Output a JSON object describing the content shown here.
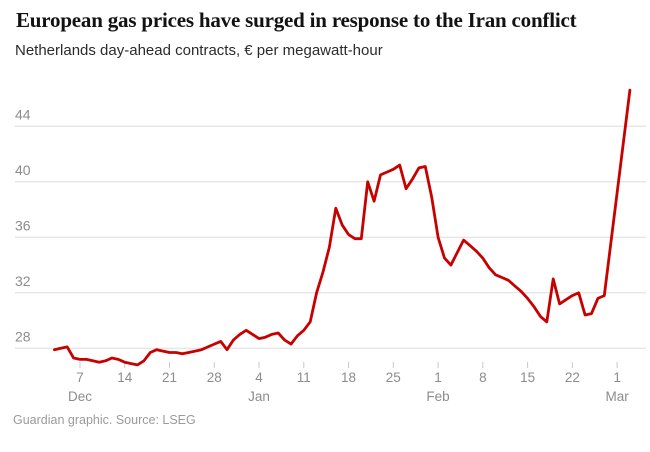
{
  "header": {
    "title": "European gas prices have surged in response to the Iran conflict",
    "subtitle": "Netherlands day-ahead contracts, € per megawatt-hour"
  },
  "footer": {
    "credit": "Guardian graphic. Source: LSEG"
  },
  "colors": {
    "line": "#c70000",
    "gridline": "#dedede",
    "tick_mark": "#c9c9c9",
    "axis_text": "#8c8c8c",
    "title_text": "#121212"
  },
  "chart_data": {
    "type": "line",
    "title": "European gas prices have surged in response to the Iran conflict",
    "subtitle": "Netherlands day-ahead contracts, € per megawatt-hour",
    "ylabel": "€ per megawatt-hour",
    "xlabel": "",
    "legend": "none",
    "grid": "horizontal",
    "y_axis": {
      "ticks": [
        28,
        32,
        36,
        40,
        44
      ],
      "range": [
        26.5,
        47.2
      ]
    },
    "x_axis": {
      "ticks": [
        {
          "label": "7",
          "day": 7
        },
        {
          "label": "14",
          "day": 14
        },
        {
          "label": "21",
          "day": 21
        },
        {
          "label": "28",
          "day": 28
        },
        {
          "label": "4",
          "day": 35
        },
        {
          "label": "11",
          "day": 42
        },
        {
          "label": "18",
          "day": 49
        },
        {
          "label": "25",
          "day": 56
        },
        {
          "label": "1",
          "day": 63
        },
        {
          "label": "8",
          "day": 70
        },
        {
          "label": "15",
          "day": 77
        },
        {
          "label": "22",
          "day": 84
        },
        {
          "label": "1",
          "day": 91
        }
      ],
      "months": [
        {
          "label": "Dec",
          "day": 7
        },
        {
          "label": "Jan",
          "day": 35
        },
        {
          "label": "Feb",
          "day": 63
        },
        {
          "label": "Mar",
          "day": 91
        }
      ]
    },
    "series": [
      {
        "name": "Netherlands day-ahead gas price",
        "color": "#c70000",
        "start_day": 3,
        "points": [
          {
            "date": "3 Dec",
            "value": 27.9
          },
          {
            "date": "4 Dec",
            "value": 28.0
          },
          {
            "date": "5 Dec",
            "value": 28.1
          },
          {
            "date": "6 Dec",
            "value": 27.3
          },
          {
            "date": "7 Dec",
            "value": 27.2
          },
          {
            "date": "8 Dec",
            "value": 27.2
          },
          {
            "date": "9 Dec",
            "value": 27.1
          },
          {
            "date": "10 Dec",
            "value": 27.0
          },
          {
            "date": "11 Dec",
            "value": 27.1
          },
          {
            "date": "12 Dec",
            "value": 27.3
          },
          {
            "date": "13 Dec",
            "value": 27.2
          },
          {
            "date": "14 Dec",
            "value": 27.0
          },
          {
            "date": "15 Dec",
            "value": 26.9
          },
          {
            "date": "16 Dec",
            "value": 26.8
          },
          {
            "date": "17 Dec",
            "value": 27.1
          },
          {
            "date": "18 Dec",
            "value": 27.7
          },
          {
            "date": "19 Dec",
            "value": 27.9
          },
          {
            "date": "20 Dec",
            "value": 27.8
          },
          {
            "date": "21 Dec",
            "value": 27.7
          },
          {
            "date": "22 Dec",
            "value": 27.7
          },
          {
            "date": "23 Dec",
            "value": 27.6
          },
          {
            "date": "24 Dec",
            "value": 27.7
          },
          {
            "date": "25 Dec",
            "value": 27.8
          },
          {
            "date": "26 Dec",
            "value": 27.9
          },
          {
            "date": "27 Dec",
            "value": 28.1
          },
          {
            "date": "28 Dec",
            "value": 28.3
          },
          {
            "date": "29 Dec",
            "value": 28.5
          },
          {
            "date": "30 Dec",
            "value": 27.9
          },
          {
            "date": "31 Dec",
            "value": 28.6
          },
          {
            "date": "1 Jan",
            "value": 29.0
          },
          {
            "date": "2 Jan",
            "value": 29.3
          },
          {
            "date": "3 Jan",
            "value": 29.0
          },
          {
            "date": "4 Jan",
            "value": 28.7
          },
          {
            "date": "5 Jan",
            "value": 28.8
          },
          {
            "date": "6 Jan",
            "value": 29.0
          },
          {
            "date": "7 Jan",
            "value": 29.1
          },
          {
            "date": "8 Jan",
            "value": 28.6
          },
          {
            "date": "9 Jan",
            "value": 28.3
          },
          {
            "date": "10 Jan",
            "value": 28.9
          },
          {
            "date": "11 Jan",
            "value": 29.3
          },
          {
            "date": "12 Jan",
            "value": 29.9
          },
          {
            "date": "13 Jan",
            "value": 32.0
          },
          {
            "date": "14 Jan",
            "value": 33.5
          },
          {
            "date": "15 Jan",
            "value": 35.3
          },
          {
            "date": "16 Jan",
            "value": 38.1
          },
          {
            "date": "17 Jan",
            "value": 36.9
          },
          {
            "date": "18 Jan",
            "value": 36.2
          },
          {
            "date": "19 Jan",
            "value": 35.9
          },
          {
            "date": "20 Jan",
            "value": 35.9
          },
          {
            "date": "21 Jan",
            "value": 40.0
          },
          {
            "date": "22 Jan",
            "value": 38.6
          },
          {
            "date": "23 Jan",
            "value": 40.5
          },
          {
            "date": "24 Jan",
            "value": 40.7
          },
          {
            "date": "25 Jan",
            "value": 40.9
          },
          {
            "date": "26 Jan",
            "value": 41.2
          },
          {
            "date": "27 Jan",
            "value": 39.5
          },
          {
            "date": "28 Jan",
            "value": 40.2
          },
          {
            "date": "29 Jan",
            "value": 41.0
          },
          {
            "date": "30 Jan",
            "value": 41.1
          },
          {
            "date": "31 Jan",
            "value": 38.9
          },
          {
            "date": "1 Feb",
            "value": 36.0
          },
          {
            "date": "2 Feb",
            "value": 34.5
          },
          {
            "date": "3 Feb",
            "value": 34.0
          },
          {
            "date": "4 Feb",
            "value": 34.9
          },
          {
            "date": "5 Feb",
            "value": 35.8
          },
          {
            "date": "6 Feb",
            "value": 35.4
          },
          {
            "date": "7 Feb",
            "value": 35.0
          },
          {
            "date": "8 Feb",
            "value": 34.5
          },
          {
            "date": "9 Feb",
            "value": 33.8
          },
          {
            "date": "10 Feb",
            "value": 33.3
          },
          {
            "date": "11 Feb",
            "value": 33.1
          },
          {
            "date": "12 Feb",
            "value": 32.9
          },
          {
            "date": "13 Feb",
            "value": 32.5
          },
          {
            "date": "14 Feb",
            "value": 32.1
          },
          {
            "date": "15 Feb",
            "value": 31.6
          },
          {
            "date": "16 Feb",
            "value": 31.0
          },
          {
            "date": "17 Feb",
            "value": 30.3
          },
          {
            "date": "18 Feb",
            "value": 29.9
          },
          {
            "date": "19 Feb",
            "value": 33.0
          },
          {
            "date": "20 Feb",
            "value": 31.2
          },
          {
            "date": "21 Feb",
            "value": 31.5
          },
          {
            "date": "22 Feb",
            "value": 31.8
          },
          {
            "date": "23 Feb",
            "value": 32.0
          },
          {
            "date": "24 Feb",
            "value": 30.4
          },
          {
            "date": "25 Feb",
            "value": 30.5
          },
          {
            "date": "26 Feb",
            "value": 31.6
          },
          {
            "date": "27 Feb",
            "value": 31.8
          },
          {
            "date": "28 Feb",
            "value": 35.5
          },
          {
            "date": "1 Mar",
            "value": 39.2
          },
          {
            "date": "2 Mar",
            "value": 42.9
          },
          {
            "date": "3 Mar",
            "value": 46.6
          }
        ]
      }
    ]
  }
}
